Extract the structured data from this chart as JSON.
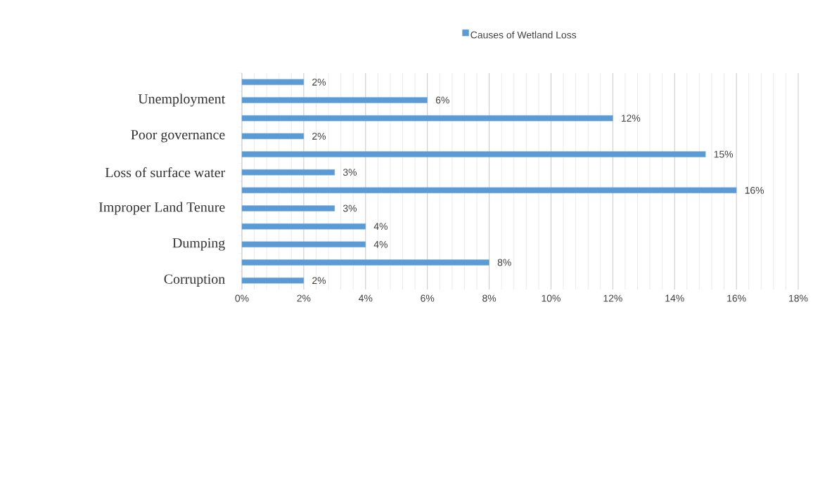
{
  "chart_data": {
    "type": "bar",
    "orientation": "horizontal",
    "categories": [
      null,
      "Unemployment",
      null,
      "Poor governance",
      null,
      "Loss of surface water",
      null,
      "Improper Land Tenure",
      null,
      "Dumping",
      null,
      "Corruption"
    ],
    "series": [
      {
        "name": "Causes of Wetland Loss",
        "color": "#5b9bd5",
        "values": [
          2,
          6,
          12,
          2,
          15,
          3,
          16,
          3,
          4,
          4,
          8,
          2
        ],
        "value_labels": [
          "2%",
          "6%",
          "12%",
          "2%",
          "15%",
          "3%",
          "16%",
          "3%",
          "4%",
          "4%",
          "8%",
          "2%"
        ]
      }
    ],
    "xlim": [
      0,
      18
    ],
    "xticks": [
      {
        "value": 0,
        "label": "0%"
      },
      {
        "value": 2,
        "label": "2%"
      },
      {
        "value": 4,
        "label": "4%"
      },
      {
        "value": 6,
        "label": "6%"
      },
      {
        "value": 8,
        "label": "8%"
      },
      {
        "value": 10,
        "label": "10%"
      },
      {
        "value": 12,
        "label": "12%"
      },
      {
        "value": 14,
        "label": "14%"
      },
      {
        "value": 16,
        "label": "16%"
      },
      {
        "value": 18,
        "label": "18%"
      }
    ],
    "grid": "x",
    "legend": "top"
  }
}
